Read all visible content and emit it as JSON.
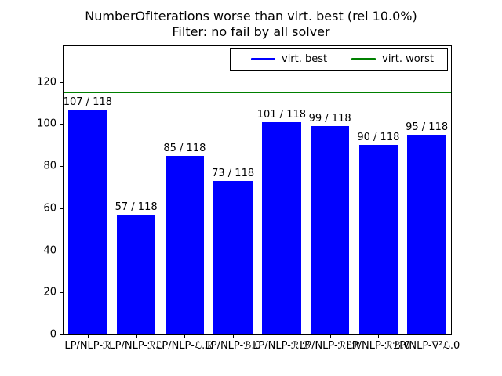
{
  "title": {
    "line1": "NumberOfIterations worse than virt. best (rel 10.0%)",
    "line2": "Filter: no fail by all solver"
  },
  "legend": {
    "items": [
      {
        "label": "virt. best",
        "color": "#0000ff"
      },
      {
        "label": "virt. worst",
        "color": "#008000"
      }
    ]
  },
  "chart_data": {
    "type": "bar",
    "title": "NumberOfIterations worse than virt. best (rel 10.0%)",
    "subtitle": "Filter: no fail by all solver",
    "categories": [
      "LP/NLP-ℛ",
      "LP/NLP-ℛℒ",
      "LP/NLP-ℒ.ℛ",
      "LP/NLP-ℬ.0",
      "LP/NLP-ℛ.ℬ",
      "LP/NLP-ℛℰℛ",
      "LP/NLP-ℛℬ.0",
      "LP/NLP-∇²ℒ.0"
    ],
    "values": [
      107,
      57,
      85,
      73,
      101,
      99,
      90,
      95
    ],
    "bar_labels": [
      "107 / 118",
      "57 / 118",
      "85 / 118",
      "73 / 118",
      "101 / 118",
      "99 / 118",
      "90 / 118",
      "95 / 118"
    ],
    "total_instances": 118,
    "bar_color": "#0000ff",
    "hline": {
      "value": 115,
      "color": "#008000",
      "legend_label": "virt. worst"
    },
    "legend": [
      "virt. best",
      "virt. worst"
    ],
    "xlabel": "",
    "ylabel": "",
    "ylim": [
      0,
      137
    ],
    "yticks": [
      0,
      20,
      40,
      60,
      80,
      100,
      120
    ],
    "grid": false,
    "legend_position": "upper right, horizontal"
  }
}
